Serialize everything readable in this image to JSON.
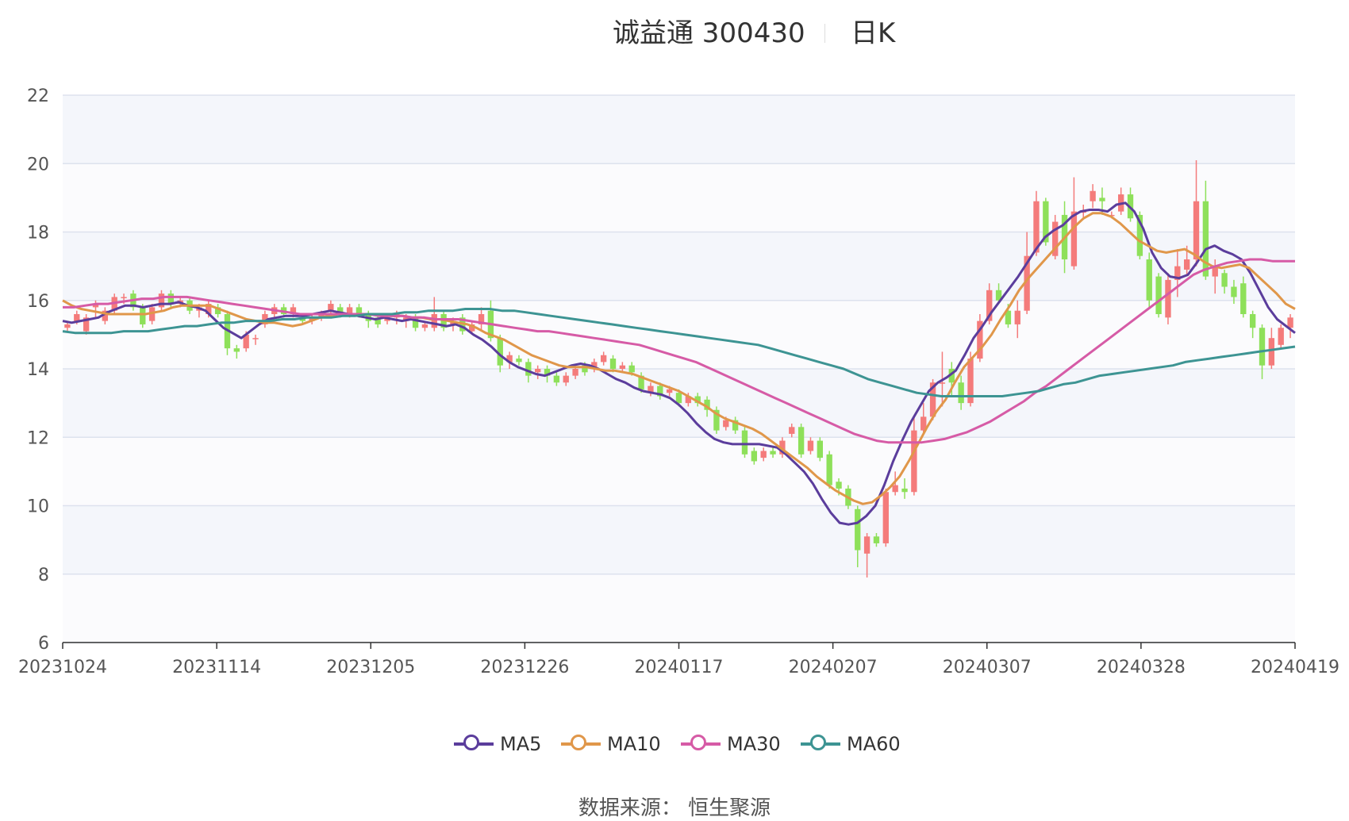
{
  "title": {
    "name": "诚益通 300430",
    "period": "日K"
  },
  "source_label": "数据来源：  恒生聚源",
  "legend": [
    {
      "label": "MA5",
      "color": "#5b3d9c"
    },
    {
      "label": "MA10",
      "color": "#e0974a"
    },
    {
      "label": "MA30",
      "color": "#d65ba6"
    },
    {
      "label": "MA60",
      "color": "#3d9493"
    }
  ],
  "chart_data": {
    "type": "candlestick",
    "title": "诚益通 300430",
    "ylim": [
      6,
      22
    ],
    "yticks": [
      6,
      8,
      10,
      12,
      14,
      16,
      18,
      20,
      22
    ],
    "x_tick_labels": [
      "20231024",
      "20231114",
      "20231205",
      "20231226",
      "20240117",
      "20240207",
      "20240307",
      "20240328",
      "20240419"
    ],
    "up_color": "#f47b7b",
    "down_color": "#8ee05a",
    "grid": true,
    "ohlc": [
      [
        15.2,
        15.3,
        15.1,
        15.4
      ],
      [
        15.4,
        15.6,
        15.3,
        15.7
      ],
      [
        15.1,
        15.5,
        15.0,
        15.6
      ],
      [
        15.8,
        15.9,
        15.5,
        16.0
      ],
      [
        15.4,
        15.7,
        15.3,
        15.8
      ],
      [
        15.7,
        16.1,
        15.6,
        16.2
      ],
      [
        16.1,
        16.1,
        15.9,
        16.2
      ],
      [
        16.2,
        15.8,
        15.7,
        16.3
      ],
      [
        15.8,
        15.3,
        15.2,
        15.9
      ],
      [
        15.4,
        15.8,
        15.3,
        15.9
      ],
      [
        15.8,
        16.2,
        15.7,
        16.3
      ],
      [
        16.2,
        15.9,
        15.8,
        16.3
      ],
      [
        15.9,
        16.0,
        15.8,
        16.1
      ],
      [
        16.0,
        15.7,
        15.6,
        16.1
      ],
      [
        15.7,
        15.8,
        15.5,
        15.9
      ],
      [
        15.6,
        15.9,
        15.5,
        16.0
      ],
      [
        15.8,
        15.6,
        15.5,
        15.9
      ],
      [
        15.6,
        14.6,
        14.4,
        15.7
      ],
      [
        14.6,
        14.5,
        14.3,
        14.7
      ],
      [
        14.6,
        15.0,
        14.5,
        15.1
      ],
      [
        14.9,
        14.9,
        14.7,
        15.0
      ],
      [
        15.3,
        15.6,
        15.2,
        15.7
      ],
      [
        15.6,
        15.8,
        15.5,
        15.9
      ],
      [
        15.8,
        15.6,
        15.5,
        15.9
      ],
      [
        15.6,
        15.8,
        15.5,
        15.9
      ],
      [
        15.5,
        15.4,
        15.3,
        15.6
      ],
      [
        15.4,
        15.5,
        15.3,
        15.6
      ],
      [
        15.5,
        15.6,
        15.4,
        15.7
      ],
      [
        15.7,
        15.9,
        15.6,
        16.0
      ],
      [
        15.8,
        15.6,
        15.5,
        15.9
      ],
      [
        15.6,
        15.8,
        15.5,
        15.9
      ],
      [
        15.8,
        15.6,
        15.5,
        15.9
      ],
      [
        15.6,
        15.4,
        15.2,
        15.7
      ],
      [
        15.5,
        15.3,
        15.2,
        15.6
      ],
      [
        15.4,
        15.5,
        15.3,
        15.6
      ],
      [
        15.5,
        15.6,
        15.3,
        15.7
      ],
      [
        15.4,
        15.5,
        15.2,
        15.6
      ],
      [
        15.5,
        15.2,
        15.1,
        15.6
      ],
      [
        15.2,
        15.3,
        15.1,
        15.4
      ],
      [
        15.2,
        15.6,
        15.1,
        16.1
      ],
      [
        15.6,
        15.2,
        15.1,
        15.7
      ],
      [
        15.3,
        15.4,
        15.1,
        15.5
      ],
      [
        15.5,
        15.1,
        15.0,
        15.6
      ],
      [
        15.1,
        15.3,
        15.0,
        15.4
      ],
      [
        15.3,
        15.6,
        15.1,
        15.8
      ],
      [
        15.7,
        14.9,
        14.8,
        16.0
      ],
      [
        14.9,
        14.1,
        13.9,
        15.0
      ],
      [
        14.2,
        14.4,
        14.0,
        14.5
      ],
      [
        14.3,
        14.2,
        14.1,
        14.4
      ],
      [
        14.2,
        13.8,
        13.6,
        14.3
      ],
      [
        13.9,
        14.0,
        13.7,
        14.1
      ],
      [
        14.0,
        13.8,
        13.6,
        14.1
      ],
      [
        13.8,
        13.6,
        13.5,
        13.9
      ],
      [
        13.6,
        13.8,
        13.5,
        13.9
      ],
      [
        13.8,
        14.0,
        13.7,
        14.1
      ],
      [
        14.1,
        13.9,
        13.8,
        14.2
      ],
      [
        14.0,
        14.2,
        13.9,
        14.3
      ],
      [
        14.2,
        14.4,
        14.1,
        14.5
      ],
      [
        14.3,
        14.0,
        13.9,
        14.4
      ],
      [
        14.0,
        14.1,
        13.9,
        14.2
      ],
      [
        14.1,
        13.9,
        13.8,
        14.2
      ],
      [
        13.8,
        13.4,
        13.3,
        13.9
      ],
      [
        13.3,
        13.5,
        13.2,
        13.6
      ],
      [
        13.5,
        13.2,
        13.1,
        13.6
      ],
      [
        13.3,
        13.4,
        13.2,
        13.5
      ],
      [
        13.3,
        13.0,
        12.9,
        13.4
      ],
      [
        13.0,
        13.2,
        12.9,
        13.3
      ],
      [
        13.2,
        13.0,
        12.9,
        13.3
      ],
      [
        13.1,
        12.8,
        12.6,
        13.2
      ],
      [
        12.8,
        12.2,
        12.1,
        12.9
      ],
      [
        12.3,
        12.5,
        12.2,
        12.6
      ],
      [
        12.5,
        12.2,
        12.1,
        12.6
      ],
      [
        12.2,
        11.5,
        11.4,
        12.3
      ],
      [
        11.6,
        11.3,
        11.2,
        11.7
      ],
      [
        11.4,
        11.6,
        11.3,
        11.7
      ],
      [
        11.6,
        11.5,
        11.4,
        11.7
      ],
      [
        11.5,
        11.9,
        11.4,
        12.0
      ],
      [
        12.1,
        12.3,
        12.0,
        12.4
      ],
      [
        12.3,
        11.5,
        11.4,
        12.4
      ],
      [
        11.6,
        11.9,
        11.5,
        12.0
      ],
      [
        11.9,
        11.4,
        11.3,
        12.0
      ],
      [
        11.5,
        10.6,
        10.5,
        11.6
      ],
      [
        10.7,
        10.5,
        10.3,
        10.8
      ],
      [
        10.5,
        10.0,
        9.9,
        10.6
      ],
      [
        9.9,
        8.7,
        8.2,
        10.0
      ],
      [
        8.6,
        9.1,
        7.9,
        9.2
      ],
      [
        9.1,
        8.9,
        8.8,
        9.2
      ],
      [
        8.9,
        10.4,
        8.8,
        10.5
      ],
      [
        10.4,
        10.6,
        10.3,
        11.0
      ],
      [
        10.5,
        10.4,
        10.2,
        10.8
      ],
      [
        10.4,
        12.2,
        10.3,
        12.6
      ],
      [
        12.2,
        12.6,
        12.1,
        13.0
      ],
      [
        12.6,
        13.6,
        12.5,
        13.7
      ],
      [
        13.6,
        13.6,
        12.9,
        14.5
      ],
      [
        14.0,
        13.6,
        13.2,
        14.2
      ],
      [
        13.6,
        13.0,
        12.8,
        13.8
      ],
      [
        13.0,
        14.3,
        12.9,
        14.5
      ],
      [
        14.3,
        15.4,
        14.2,
        15.6
      ],
      [
        15.4,
        16.3,
        15.3,
        16.5
      ],
      [
        16.3,
        16.0,
        15.9,
        16.5
      ],
      [
        15.7,
        15.3,
        15.2,
        15.9
      ],
      [
        15.3,
        15.7,
        14.9,
        16.0
      ],
      [
        15.7,
        17.3,
        15.6,
        18.0
      ],
      [
        17.4,
        18.9,
        17.3,
        19.2
      ],
      [
        18.9,
        17.7,
        17.6,
        19.0
      ],
      [
        17.3,
        18.3,
        17.2,
        18.5
      ],
      [
        18.5,
        17.2,
        16.8,
        18.9
      ],
      [
        17.0,
        18.6,
        16.9,
        19.6
      ],
      [
        18.6,
        18.6,
        18.4,
        18.8
      ],
      [
        18.9,
        19.2,
        18.7,
        19.4
      ],
      [
        19.0,
        18.9,
        18.5,
        19.3
      ],
      [
        18.5,
        18.5,
        18.4,
        18.6
      ],
      [
        18.6,
        19.1,
        18.5,
        19.3
      ],
      [
        19.1,
        18.4,
        18.3,
        19.3
      ],
      [
        18.5,
        17.3,
        17.2,
        18.6
      ],
      [
        17.2,
        16.0,
        15.8,
        17.4
      ],
      [
        16.7,
        15.6,
        15.5,
        16.8
      ],
      [
        15.5,
        16.6,
        15.3,
        16.8
      ],
      [
        16.6,
        17.0,
        16.1,
        17.5
      ],
      [
        16.9,
        17.2,
        16.7,
        17.6
      ],
      [
        17.2,
        18.9,
        17.0,
        20.1
      ],
      [
        18.9,
        16.7,
        16.6,
        19.5
      ],
      [
        16.7,
        17.0,
        16.2,
        17.2
      ],
      [
        16.8,
        16.4,
        16.2,
        16.9
      ],
      [
        16.4,
        16.1,
        15.9,
        16.6
      ],
      [
        16.5,
        15.6,
        15.5,
        16.7
      ],
      [
        15.6,
        15.2,
        14.9,
        15.7
      ],
      [
        15.2,
        14.1,
        13.7,
        15.3
      ],
      [
        14.1,
        14.9,
        14.0,
        15.2
      ],
      [
        14.7,
        15.2,
        14.6,
        15.3
      ],
      [
        15.2,
        15.5,
        14.9,
        15.6
      ]
    ],
    "series": [
      {
        "name": "MA5",
        "color": "#5b3d9c",
        "values": [
          15.4,
          15.35,
          15.4,
          15.45,
          15.5,
          15.65,
          15.75,
          15.85,
          15.85,
          15.8,
          15.85,
          15.9,
          15.9,
          15.95,
          15.85,
          15.8,
          15.7,
          15.45,
          15.2,
          15.05,
          14.9,
          15.1,
          15.3,
          15.45,
          15.5,
          15.55,
          15.55,
          15.55,
          15.6,
          15.65,
          15.7,
          15.65,
          15.6,
          15.55,
          15.5,
          15.45,
          15.5,
          15.45,
          15.4,
          15.45,
          15.4,
          15.35,
          15.3,
          15.25,
          15.3,
          15.2,
          15.0,
          14.85,
          14.65,
          14.4,
          14.2,
          14.05,
          13.95,
          13.85,
          13.8,
          13.9,
          14.0,
          14.1,
          14.15,
          14.1,
          14.0,
          13.85,
          13.7,
          13.6,
          13.45,
          13.35,
          13.3,
          13.25,
          13.15,
          12.95,
          12.7,
          12.4,
          12.15,
          11.95,
          11.85,
          11.8,
          11.8,
          11.8,
          11.8,
          11.75,
          11.7,
          11.5,
          11.25,
          11.0,
          10.65,
          10.2,
          9.8,
          9.5,
          9.45,
          9.5,
          9.7,
          10.0,
          10.6,
          11.3,
          11.9,
          12.45,
          12.9,
          13.35,
          13.6,
          13.75,
          13.95,
          14.4,
          14.9,
          15.25,
          15.65,
          16.0,
          16.35,
          16.7,
          17.1,
          17.5,
          17.85,
          18.05,
          18.2,
          18.45,
          18.6,
          18.65,
          18.65,
          18.6,
          18.8,
          18.85,
          18.6,
          18.1,
          17.4,
          16.95,
          16.7,
          16.65,
          16.75,
          17.1,
          17.5,
          17.6,
          17.45,
          17.35,
          17.2,
          16.8,
          16.3,
          15.8,
          15.45,
          15.25,
          15.05
        ]
      },
      {
        "name": "MA10",
        "color": "#e0974a",
        "values": [
          16.0,
          15.85,
          15.75,
          15.7,
          15.65,
          15.6,
          15.6,
          15.6,
          15.6,
          15.6,
          15.65,
          15.7,
          15.8,
          15.85,
          15.85,
          15.85,
          15.85,
          15.75,
          15.65,
          15.55,
          15.45,
          15.4,
          15.35,
          15.35,
          15.3,
          15.25,
          15.3,
          15.4,
          15.5,
          15.55,
          15.6,
          15.6,
          15.6,
          15.6,
          15.6,
          15.55,
          15.55,
          15.55,
          15.5,
          15.5,
          15.45,
          15.45,
          15.4,
          15.35,
          15.3,
          15.2,
          15.05,
          14.95,
          14.85,
          14.7,
          14.55,
          14.4,
          14.3,
          14.2,
          14.1,
          14.05,
          14.05,
          14.05,
          14.0,
          13.95,
          13.95,
          13.9,
          13.85,
          13.75,
          13.65,
          13.55,
          13.45,
          13.35,
          13.2,
          13.05,
          12.9,
          12.7,
          12.55,
          12.45,
          12.35,
          12.25,
          12.1,
          11.9,
          11.7,
          11.5,
          11.3,
          11.1,
          10.85,
          10.65,
          10.45,
          10.3,
          10.15,
          10.05,
          10.1,
          10.3,
          10.55,
          10.85,
          11.3,
          11.8,
          12.3,
          12.75,
          13.1,
          13.6,
          14.05,
          14.35,
          14.65,
          15.0,
          15.45,
          15.85,
          16.3,
          16.65,
          16.95,
          17.25,
          17.55,
          17.85,
          18.15,
          18.4,
          18.55,
          18.55,
          18.45,
          18.25,
          18.0,
          17.75,
          17.6,
          17.45,
          17.4,
          17.45,
          17.5,
          17.35,
          17.15,
          17.0,
          16.95,
          17.0,
          17.05,
          16.95,
          16.7,
          16.45,
          16.2,
          15.9,
          15.75
        ]
      },
      {
        "name": "MA30",
        "color": "#d65ba6",
        "values": [
          15.8,
          15.8,
          15.85,
          15.9,
          15.9,
          15.95,
          16.0,
          16.05,
          16.05,
          16.1,
          16.1,
          16.1,
          16.05,
          16.0,
          15.95,
          15.9,
          15.85,
          15.8,
          15.75,
          15.7,
          15.65,
          15.6,
          15.6,
          15.6,
          15.6,
          15.6,
          15.6,
          15.6,
          15.55,
          15.55,
          15.55,
          15.5,
          15.5,
          15.45,
          15.45,
          15.45,
          15.4,
          15.35,
          15.3,
          15.25,
          15.2,
          15.15,
          15.1,
          15.1,
          15.05,
          15.0,
          14.95,
          14.9,
          14.85,
          14.8,
          14.75,
          14.7,
          14.6,
          14.5,
          14.4,
          14.3,
          14.2,
          14.05,
          13.9,
          13.75,
          13.6,
          13.45,
          13.3,
          13.15,
          13.0,
          12.85,
          12.7,
          12.55,
          12.4,
          12.25,
          12.1,
          12.0,
          11.9,
          11.85,
          11.85,
          11.85,
          11.85,
          11.9,
          11.95,
          12.05,
          12.15,
          12.3,
          12.45,
          12.65,
          12.85,
          13.05,
          13.3,
          13.5,
          13.75,
          14.0,
          14.25,
          14.5,
          14.75,
          15.0,
          15.25,
          15.5,
          15.75,
          16.0,
          16.25,
          16.5,
          16.75,
          16.9,
          17.0,
          17.1,
          17.15,
          17.2,
          17.2,
          17.15,
          17.15,
          17.15
        ]
      },
      {
        "name": "MA60",
        "color": "#3d9493",
        "values": [
          15.1,
          15.05,
          15.05,
          15.05,
          15.05,
          15.1,
          15.1,
          15.1,
          15.15,
          15.2,
          15.25,
          15.25,
          15.3,
          15.35,
          15.35,
          15.4,
          15.4,
          15.4,
          15.45,
          15.45,
          15.5,
          15.5,
          15.5,
          15.55,
          15.55,
          15.6,
          15.6,
          15.6,
          15.65,
          15.65,
          15.7,
          15.7,
          15.7,
          15.75,
          15.75,
          15.75,
          15.7,
          15.7,
          15.65,
          15.6,
          15.55,
          15.5,
          15.45,
          15.4,
          15.35,
          15.3,
          15.25,
          15.2,
          15.15,
          15.1,
          15.05,
          15.0,
          14.95,
          14.9,
          14.85,
          14.8,
          14.75,
          14.7,
          14.6,
          14.5,
          14.4,
          14.3,
          14.2,
          14.1,
          14.0,
          13.85,
          13.7,
          13.6,
          13.5,
          13.4,
          13.3,
          13.25,
          13.2,
          13.2,
          13.2,
          13.2,
          13.2,
          13.2,
          13.25,
          13.3,
          13.35,
          13.45,
          13.55,
          13.6,
          13.7,
          13.8,
          13.85,
          13.9,
          13.95,
          14.0,
          14.05,
          14.1,
          14.2,
          14.25,
          14.3,
          14.35,
          14.4,
          14.45,
          14.5,
          14.55,
          14.6,
          14.65
        ]
      }
    ]
  }
}
